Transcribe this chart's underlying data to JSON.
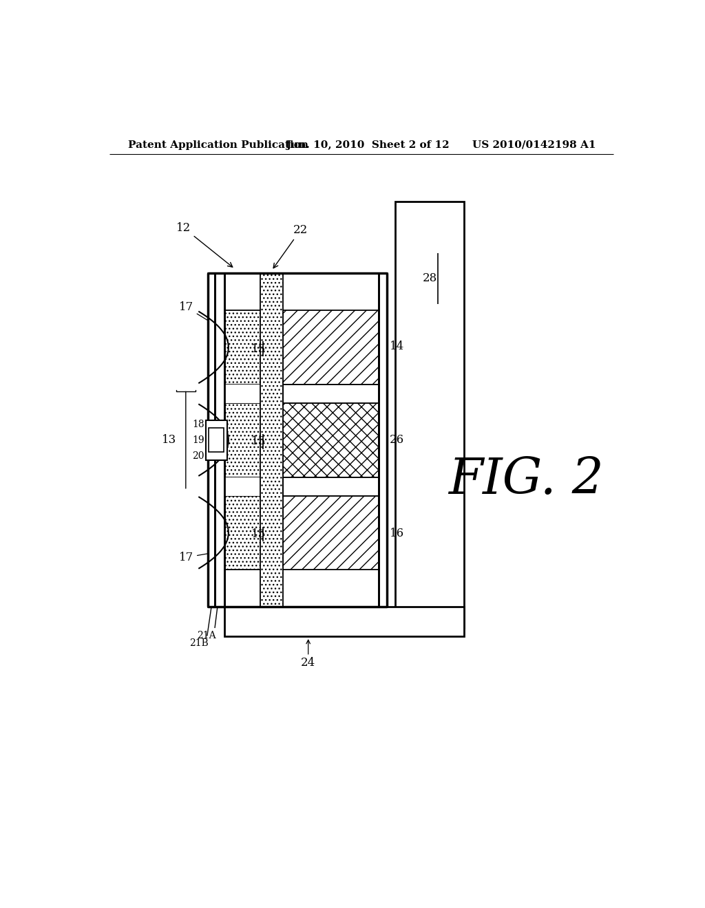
{
  "bg": "#ffffff",
  "lc": "#000000",
  "header_left": "Patent Application Publication",
  "header_mid": "Jun. 10, 2010  Sheet 2 of 12",
  "header_right": "US 2010/0142198 A1",
  "fig_label": "FIG. 2",
  "notes": {
    "layout": "Pixel coords 1024x1320. Main module box left~220 right~560, top~310 bottom~940. Bar28 x~570-700, y~175-980. Bar24 bottom of module. Left wall two thick lines. Three LED stacks inside."
  }
}
